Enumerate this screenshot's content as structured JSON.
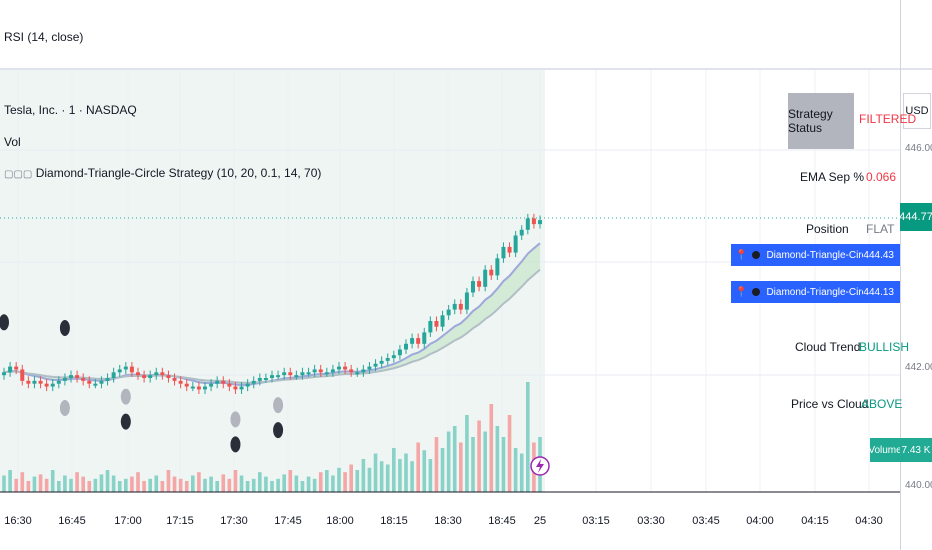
{
  "rsi_label": "RSI (14, close)",
  "legend": {
    "symbol": "Tesla, Inc. · 1 · NASDAQ",
    "vol": "Vol",
    "strategy": "Diamond-Triangle-Circle Strategy (10, 20, 0.1, 14, 70)"
  },
  "currency": "USD",
  "price_axis": {
    "p446": "446.00",
    "p442": "442.00",
    "p440": "440.00"
  },
  "last_price": "444.77",
  "ema_rows": [
    {
      "name": "Diamond-Triangle-Circle Strategy:Fast EMA",
      "value": "444.43"
    },
    {
      "name": "Diamond-Triangle-Circle Strategy:Slow EMA",
      "value": "444.13"
    }
  ],
  "status_table": {
    "strategy_status_label": "Strategy Status",
    "strategy_status_value": "FILTERED",
    "ema_sep_label": "EMA Sep %",
    "ema_sep_value": "0.066",
    "position_label": "Position",
    "position_value": "FLAT",
    "cloud_trend_label": "Cloud Trend",
    "cloud_trend_value": "BULLISH",
    "price_vs_cloud_label": "Price vs Cloud",
    "price_vs_cloud_value": "ABOVE"
  },
  "volume": {
    "label": "Volume",
    "value": "7.43 K"
  },
  "colors": {
    "up": "#26a69a",
    "down": "#ef5350",
    "accent": "#2962ff",
    "status_red": "#f23645",
    "status_green": "#089981"
  },
  "chart_data": {
    "type": "candlestick",
    "x_ticks": [
      "16:30",
      "16:45",
      "17:00",
      "17:15",
      "17:30",
      "17:45",
      "18:00",
      "18:15",
      "18:30",
      "18:45",
      "25",
      "03:15",
      "03:30",
      "03:45",
      "04:00",
      "04:15",
      "04:30"
    ],
    "ylim": [
      440,
      447
    ],
    "close": [
      442.1,
      442.2,
      442.15,
      441.95,
      441.9,
      441.95,
      441.9,
      441.85,
      441.9,
      441.95,
      442.0,
      442.05,
      442.0,
      441.95,
      441.9,
      441.9,
      441.95,
      442.0,
      442.1,
      442.15,
      442.2,
      442.1,
      442.05,
      442.0,
      442.05,
      442.1,
      442.05,
      442.0,
      441.95,
      441.9,
      441.85,
      441.85,
      441.8,
      441.85,
      441.9,
      441.95,
      441.9,
      441.85,
      441.8,
      441.85,
      441.9,
      441.95,
      442.0,
      442.0,
      442.05,
      442.05,
      442.1,
      442.05,
      442.05,
      442.1,
      442.1,
      442.15,
      442.1,
      442.1,
      442.15,
      442.2,
      442.15,
      442.1,
      442.1,
      442.15,
      442.2,
      442.25,
      442.3,
      442.35,
      442.4,
      442.5,
      442.6,
      442.7,
      442.6,
      442.8,
      443.0,
      442.9,
      443.1,
      443.2,
      443.3,
      443.2,
      443.5,
      443.7,
      443.6,
      443.9,
      443.8,
      444.1,
      444.3,
      444.2,
      444.5,
      444.6,
      444.8,
      444.7,
      444.77
    ],
    "volume_levels": [
      0.15,
      0.2,
      0.12,
      0.18,
      0.1,
      0.14,
      0.16,
      0.12,
      0.2,
      0.1,
      0.15,
      0.12,
      0.18,
      0.14,
      0.1,
      0.12,
      0.16,
      0.2,
      0.15,
      0.1,
      0.12,
      0.14,
      0.18,
      0.1,
      0.12,
      0.15,
      0.1,
      0.2,
      0.14,
      0.12,
      0.1,
      0.15,
      0.18,
      0.12,
      0.14,
      0.1,
      0.16,
      0.12,
      0.2,
      0.15,
      0.1,
      0.12,
      0.18,
      0.14,
      0.1,
      0.12,
      0.16,
      0.2,
      0.15,
      0.1,
      0.14,
      0.12,
      0.18,
      0.2,
      0.15,
      0.22,
      0.18,
      0.25,
      0.2,
      0.3,
      0.22,
      0.35,
      0.28,
      0.25,
      0.4,
      0.3,
      0.35,
      0.28,
      0.45,
      0.38,
      0.3,
      0.5,
      0.4,
      0.55,
      0.6,
      0.45,
      0.7,
      0.5,
      0.65,
      0.55,
      0.8,
      0.6,
      0.5,
      0.7,
      0.4,
      0.35,
      1.0,
      0.45,
      0.5
    ],
    "markers": [
      {
        "i": 0,
        "type": "circle-dark",
        "pos": "above"
      },
      {
        "i": 10,
        "type": "circle-dark",
        "pos": "above"
      },
      {
        "i": 10,
        "type": "circle-grey",
        "pos": "below"
      },
      {
        "i": 20,
        "type": "circle-grey",
        "pos": "below"
      },
      {
        "i": 20,
        "type": "circle-dark",
        "pos": "below2"
      },
      {
        "i": 38,
        "type": "circle-grey",
        "pos": "below"
      },
      {
        "i": 38,
        "type": "circle-dark",
        "pos": "below2"
      },
      {
        "i": 45,
        "type": "circle-grey",
        "pos": "below"
      },
      {
        "i": 45,
        "type": "circle-dark",
        "pos": "below2"
      }
    ]
  }
}
